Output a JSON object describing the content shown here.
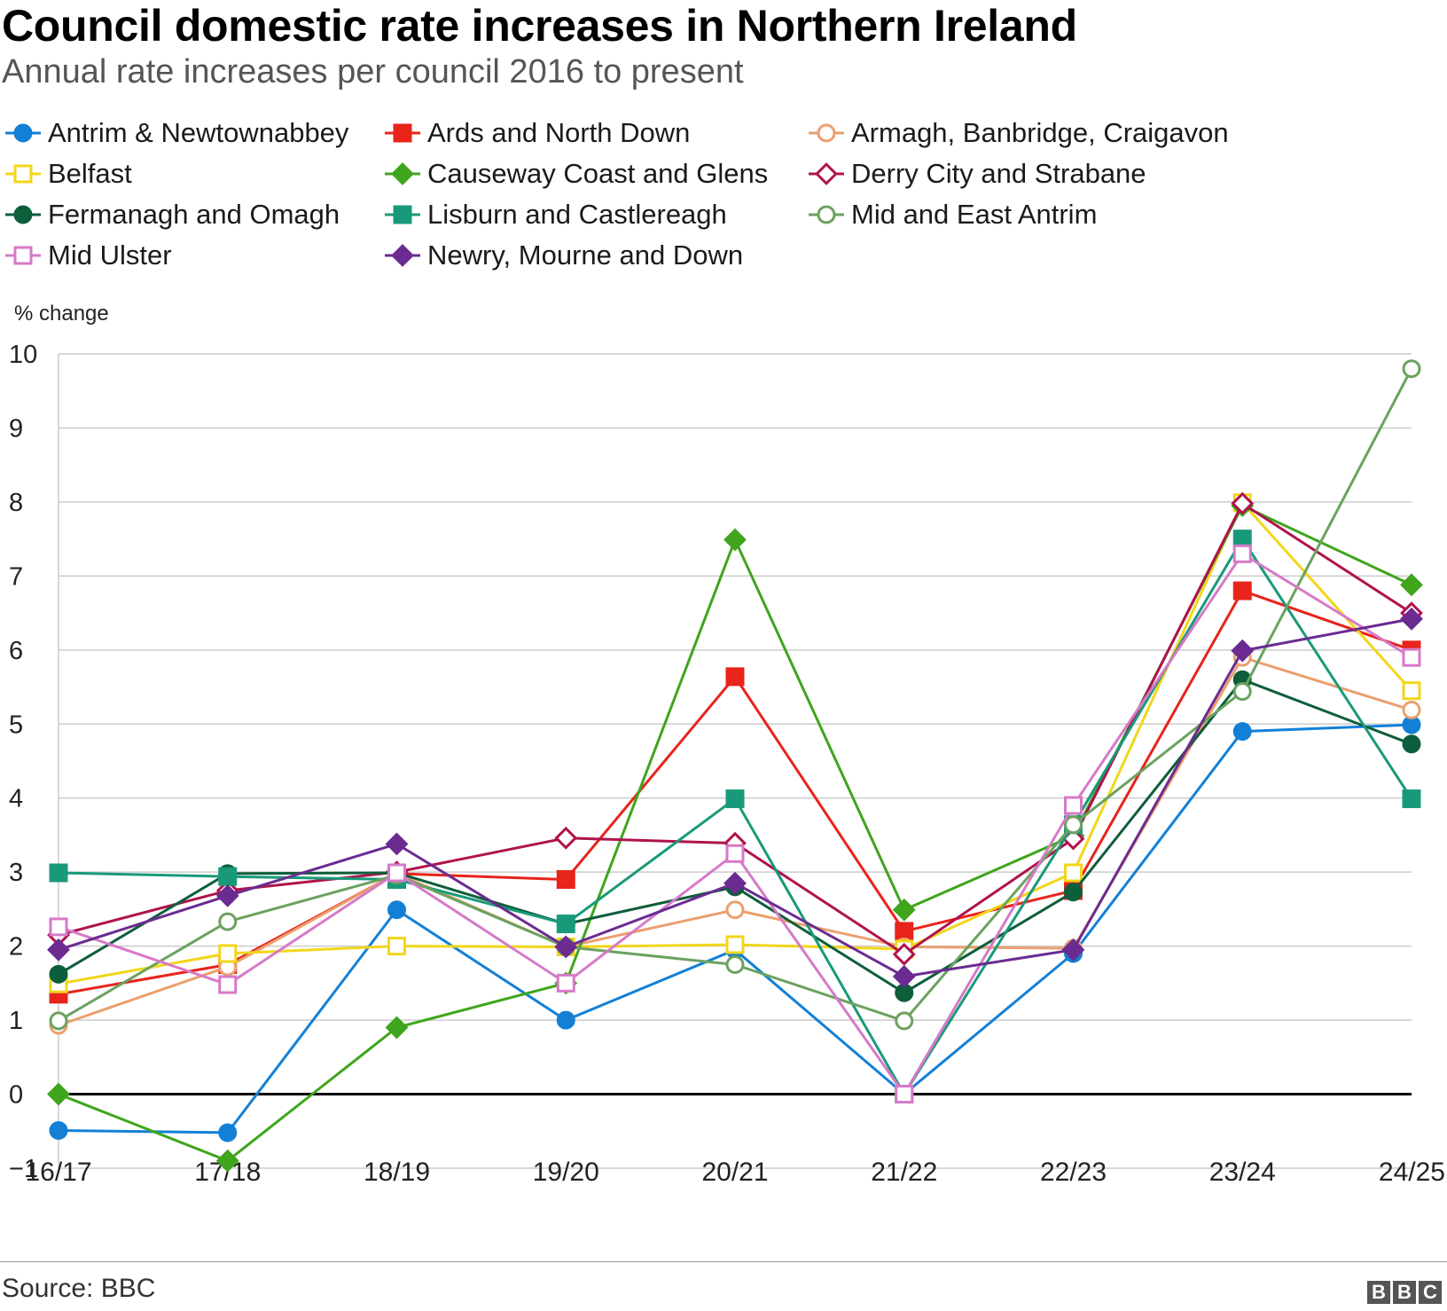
{
  "chart_data": {
    "type": "line",
    "title": "Council domestic rate increases in Northern Ireland",
    "subtitle": "Annual rate increases per council 2016 to present",
    "ylabel": "% change",
    "xlabel": "",
    "ylim": [
      -1,
      10
    ],
    "yticks": [
      10,
      9,
      8,
      7,
      6,
      5,
      4,
      3,
      2,
      1,
      0,
      -1
    ],
    "ytick_labels": [
      "10",
      "9",
      "8",
      "7",
      "6",
      "5",
      "4",
      "3",
      "2",
      "1",
      "0",
      "−1"
    ],
    "categories": [
      "16/17",
      "17/18",
      "18/19",
      "19/20",
      "20/21",
      "21/22",
      "22/23",
      "23/24",
      "24/25"
    ],
    "grid": true,
    "series": [
      {
        "name": "Antrim & Newtownabbey",
        "color": "#1380d6",
        "marker": "circle",
        "filled": true,
        "values": [
          -0.49,
          -0.52,
          2.49,
          1.0,
          1.95,
          0.0,
          1.9,
          4.9,
          4.99
        ]
      },
      {
        "name": "Ards and North Down",
        "color": "#e8241b",
        "marker": "square",
        "filled": true,
        "values": [
          1.35,
          1.75,
          2.98,
          2.9,
          5.64,
          2.2,
          2.75,
          6.8,
          6.0
        ]
      },
      {
        "name": "Armagh, Banbridge, Craigavon",
        "color": "#eaa06e",
        "marker": "circle",
        "filled": false,
        "values": [
          0.93,
          1.72,
          2.98,
          1.99,
          2.49,
          1.99,
          1.97,
          5.9,
          5.19
        ]
      },
      {
        "name": "Belfast",
        "color": "#f2d61b",
        "marker": "square",
        "filled": false,
        "values": [
          1.49,
          1.9,
          2.0,
          1.99,
          2.02,
          1.96,
          2.99,
          7.99,
          5.45
        ]
      },
      {
        "name": "Causeway Coast and Glens",
        "color": "#3fa51c",
        "marker": "diamond",
        "filled": true,
        "values": [
          0.0,
          -0.9,
          0.9,
          1.5,
          7.49,
          2.49,
          3.49,
          7.95,
          6.88
        ]
      },
      {
        "name": "Derry City and Strabane",
        "color": "#b0134d",
        "marker": "diamond",
        "filled": false,
        "values": [
          2.15,
          2.75,
          3.0,
          3.46,
          3.39,
          1.89,
          3.45,
          7.98,
          6.5
        ]
      },
      {
        "name": "Fermanagh and Omagh",
        "color": "#0d5e3a",
        "marker": "circle",
        "filled": true,
        "values": [
          1.62,
          2.98,
          2.99,
          2.3,
          2.8,
          1.37,
          2.73,
          5.6,
          4.73
        ]
      },
      {
        "name": "Lisburn and Castlereagh",
        "color": "#189a7a",
        "marker": "square",
        "filled": true,
        "values": [
          2.99,
          2.94,
          2.9,
          2.3,
          3.99,
          0.0,
          3.64,
          7.5,
          3.99
        ]
      },
      {
        "name": "Mid and East Antrim",
        "color": "#6ba25f",
        "marker": "circle",
        "filled": false,
        "values": [
          0.99,
          2.33,
          2.96,
          1.99,
          1.75,
          0.99,
          3.64,
          5.44,
          9.8
        ]
      },
      {
        "name": "Mid Ulster",
        "color": "#d67ac8",
        "marker": "square",
        "filled": false,
        "values": [
          2.26,
          1.48,
          2.99,
          1.5,
          3.25,
          0.0,
          3.9,
          7.3,
          5.9
        ]
      },
      {
        "name": "Newry, Mourne and Down",
        "color": "#6b2b91",
        "marker": "diamond",
        "filled": true,
        "values": [
          1.95,
          2.68,
          3.38,
          1.99,
          2.85,
          1.59,
          1.95,
          5.99,
          6.42
        ]
      }
    ]
  },
  "source": "Source: BBC",
  "logo": {
    "letters": [
      "B",
      "B",
      "C"
    ]
  }
}
